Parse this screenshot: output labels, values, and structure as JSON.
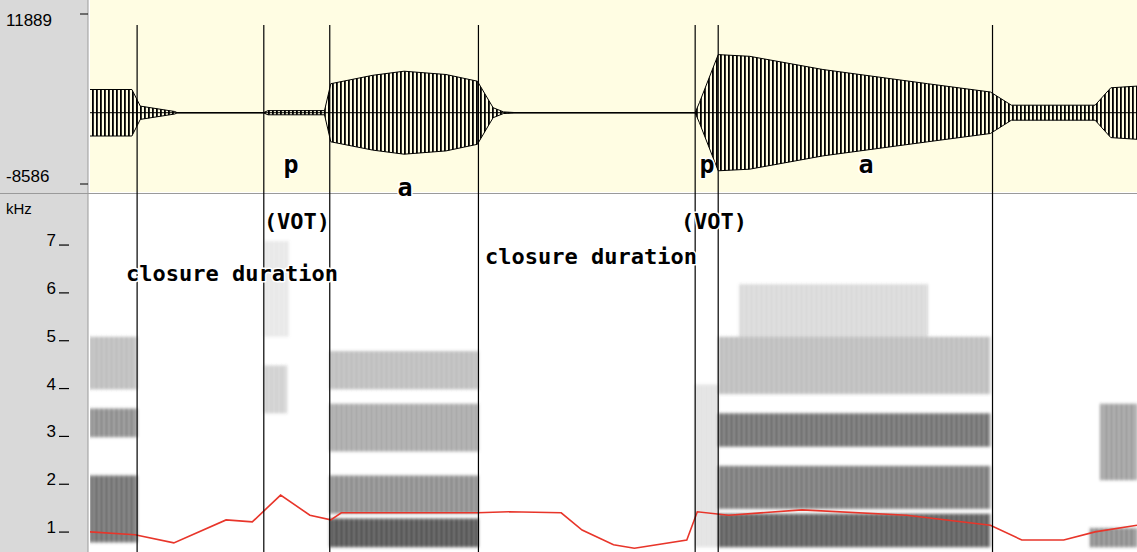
{
  "chart_data": {
    "type": "spectrogram",
    "xlim": [
      0,
      100
    ],
    "waveform": {
      "ylim": [
        -8586,
        11889
      ],
      "yticks": [
        11889,
        -8586
      ],
      "envelope": {
        "x": [
          0,
          4.0,
          4.8,
          8.1,
          8.3,
          16.6,
          17,
          22.4,
          23,
          27,
          30,
          34,
          37,
          38.5,
          39.5,
          40.5,
          57.8,
          58.2,
          60,
          63,
          70,
          80,
          86,
          88,
          96,
          97.5,
          100
        ],
        "values": [
          2800,
          2800,
          800,
          150,
          30,
          30,
          250,
          250,
          3500,
          4500,
          5000,
          4600,
          3800,
          600,
          100,
          30,
          30,
          1200,
          7000,
          6800,
          5200,
          3500,
          2500,
          900,
          900,
          3000,
          3200
        ]
      }
    },
    "spectrogram": {
      "y_label": "kHz",
      "ylim": [
        0.5,
        7.9
      ],
      "yticks": [
        1,
        2,
        3,
        4,
        5,
        6,
        7
      ],
      "energy": [
        {
          "x0": 0,
          "x1": 4.5,
          "y0": 0.7,
          "y1": 2.1,
          "level": 0.75
        },
        {
          "x0": 0,
          "x1": 4.5,
          "y0": 2.9,
          "y1": 3.5,
          "level": 0.6
        },
        {
          "x0": 0,
          "x1": 4.5,
          "y0": 3.9,
          "y1": 5.0,
          "level": 0.35
        },
        {
          "x0": 16.6,
          "x1": 18.8,
          "y0": 3.4,
          "y1": 4.4,
          "level": 0.25
        },
        {
          "x0": 16.6,
          "x1": 19,
          "y0": 5.0,
          "y1": 7.0,
          "level": 0.12
        },
        {
          "x0": 22.9,
          "x1": 37.1,
          "y0": 0.6,
          "y1": 1.2,
          "level": 0.9
        },
        {
          "x0": 22.9,
          "x1": 37.1,
          "y0": 1.3,
          "y1": 2.1,
          "level": 0.6
        },
        {
          "x0": 22.9,
          "x1": 37.1,
          "y0": 2.6,
          "y1": 3.6,
          "level": 0.45
        },
        {
          "x0": 22.9,
          "x1": 37.1,
          "y0": 3.9,
          "y1": 4.7,
          "level": 0.35
        },
        {
          "x0": 57.8,
          "x1": 60,
          "y0": 0.6,
          "y1": 4.0,
          "level": 0.15
        },
        {
          "x0": 60,
          "x1": 86,
          "y0": 0.6,
          "y1": 1.3,
          "level": 0.85
        },
        {
          "x0": 60,
          "x1": 86,
          "y0": 1.4,
          "y1": 2.3,
          "level": 0.7
        },
        {
          "x0": 60,
          "x1": 86,
          "y0": 2.7,
          "y1": 3.4,
          "level": 0.75
        },
        {
          "x0": 60,
          "x1": 86,
          "y0": 3.8,
          "y1": 5.0,
          "level": 0.35
        },
        {
          "x0": 62,
          "x1": 80,
          "y0": 5.0,
          "y1": 6.1,
          "level": 0.2
        },
        {
          "x0": 95.5,
          "x1": 100,
          "y0": 0.6,
          "y1": 1.0,
          "level": 0.6
        },
        {
          "x0": 96.5,
          "x1": 100,
          "y0": 2.0,
          "y1": 3.6,
          "level": 0.5
        }
      ]
    },
    "boundaries": [
      4.5,
      16.6,
      22.9,
      37.1,
      57.8,
      60.0,
      86.2
    ],
    "pitch": {
      "color": "#e8352a",
      "x": [
        0,
        4.3,
        8,
        13,
        15.5,
        18.2,
        21,
        23,
        24,
        37,
        40,
        45,
        47,
        50,
        52,
        57,
        58,
        61,
        68,
        78,
        86,
        89,
        93,
        96,
        100
      ],
      "values": [
        0.92,
        0.86,
        0.69,
        1.17,
        1.13,
        1.69,
        1.27,
        1.17,
        1.32,
        1.32,
        1.34,
        1.32,
        0.96,
        0.65,
        0.58,
        0.75,
        1.34,
        1.27,
        1.38,
        1.27,
        1.06,
        0.75,
        0.75,
        0.92,
        1.06
      ]
    },
    "annotations": [
      "p",
      "a",
      "(VOT)",
      "closure duration",
      "p",
      "(VOT)",
      "closure duration",
      "a"
    ]
  }
}
